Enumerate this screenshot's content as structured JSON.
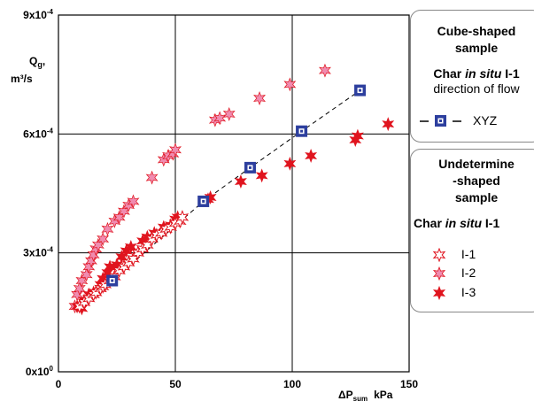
{
  "chart_data": {
    "type": "scatter",
    "title": "",
    "xlabel": "ΔP_{sum}, kPa",
    "ylabel": "Q_g, m³/s",
    "xlim": [
      0,
      150
    ],
    "ylim": [
      0,
      0.0009
    ],
    "x_ticks": [
      0,
      50,
      100,
      150
    ],
    "y_ticks": [
      "0x10^0",
      "3x10^-4",
      "6x10^-4",
      "9x10^-4"
    ],
    "grid": true,
    "legend_position": "right",
    "series": [
      {
        "name": "XYZ",
        "marker": "square",
        "color": "#2d3f9e",
        "line": "dashed",
        "points": [
          [
            23,
            0.00023
          ],
          [
            62,
            0.00043
          ],
          [
            82,
            0.000515
          ],
          [
            104,
            0.000607
          ],
          [
            129,
            0.00071
          ]
        ]
      },
      {
        "name": "I-1",
        "marker": "star-open",
        "color": "#e0141e",
        "points": [
          [
            9,
            0.000165
          ],
          [
            11,
            0.000175
          ],
          [
            13,
            0.000185
          ],
          [
            15,
            0.000195
          ],
          [
            16,
            0.0002
          ],
          [
            18,
            0.00021
          ],
          [
            19,
            0.000215
          ],
          [
            20,
            0.00022
          ],
          [
            22,
            0.00023
          ],
          [
            24,
            0.00024
          ],
          [
            26,
            0.000255
          ],
          [
            28,
            0.000265
          ],
          [
            30,
            0.000275
          ],
          [
            32,
            0.000285
          ],
          [
            34,
            0.0003
          ],
          [
            36,
            0.00031
          ],
          [
            38,
            0.00032
          ],
          [
            40,
            0.000335
          ],
          [
            42,
            0.000345
          ],
          [
            44,
            0.00035
          ],
          [
            46,
            0.00036
          ],
          [
            48,
            0.000365
          ],
          [
            50,
            0.000375
          ],
          [
            52,
            0.00038
          ],
          [
            53,
            0.00039
          ]
        ]
      },
      {
        "name": "I-2",
        "marker": "star-pink",
        "color": "#f08cb0",
        "points": [
          [
            7,
            0.000165
          ],
          [
            8,
            0.000195
          ],
          [
            9,
            0.00021
          ],
          [
            10,
            0.00023
          ],
          [
            12,
            0.000245
          ],
          [
            13,
            0.000265
          ],
          [
            14,
            0.00028
          ],
          [
            15,
            0.000295
          ],
          [
            16,
            0.00031
          ],
          [
            17,
            0.00032
          ],
          [
            19,
            0.000335
          ],
          [
            21,
            0.00036
          ],
          [
            24,
            0.00038
          ],
          [
            26,
            0.00039
          ],
          [
            28,
            0.000405
          ],
          [
            30,
            0.00042
          ],
          [
            32,
            0.00043
          ],
          [
            40,
            0.00049
          ],
          [
            45,
            0.000535
          ],
          [
            47,
            0.000545
          ],
          [
            49,
            0.00055
          ],
          [
            50,
            0.00056
          ],
          [
            67,
            0.000635
          ],
          [
            69,
            0.00064
          ],
          [
            73,
            0.00065
          ],
          [
            86,
            0.00069
          ],
          [
            99,
            0.000725
          ],
          [
            114,
            0.00076
          ]
        ]
      },
      {
        "name": "I-3",
        "marker": "star-solid",
        "color": "#e0141e",
        "points": [
          [
            8,
            0.000165
          ],
          [
            10,
            0.00016
          ],
          [
            11,
            0.00018
          ],
          [
            13,
            0.000195
          ],
          [
            15,
            0.0002
          ],
          [
            18,
            0.00022
          ],
          [
            19,
            0.000235
          ],
          [
            21,
            0.00025
          ],
          [
            22,
            0.000265
          ],
          [
            25,
            0.00027
          ],
          [
            27,
            0.00029
          ],
          [
            29,
            0.000305
          ],
          [
            31,
            0.000315
          ],
          [
            36,
            0.00033
          ],
          [
            38,
            0.00034
          ],
          [
            41,
            0.00035
          ],
          [
            45,
            0.000365
          ],
          [
            48,
            0.00037
          ],
          [
            50,
            0.000385
          ],
          [
            51,
            0.00039
          ],
          [
            64,
            0.000435
          ],
          [
            65,
            0.00044
          ],
          [
            78,
            0.00048
          ],
          [
            87,
            0.000495
          ],
          [
            99,
            0.000525
          ],
          [
            108,
            0.000545
          ],
          [
            127,
            0.000585
          ],
          [
            128,
            0.000595
          ],
          [
            141,
            0.000625
          ]
        ]
      }
    ]
  },
  "axis_text": {
    "y_label_line1": "Q",
    "y_label_sub": "g",
    "y_label_sep": ",",
    "y_label_line2": "m³/s",
    "x_label_main": "ΔP",
    "x_label_sub": "sum",
    "x_label_unit": "kPa"
  },
  "legend": {
    "cube": {
      "title_line1": "Cube-shaped",
      "title_line2": "sample",
      "char_prefix": "Char ",
      "char_italic": "in situ",
      "char_suffix": " I-1",
      "direction_text": "direction of flow",
      "series_label": "XYZ"
    },
    "undetermined": {
      "title_line1": "Undetermine",
      "title_line2": "-shaped",
      "title_line3": "sample",
      "char_prefix": "Char ",
      "char_italic": "in situ",
      "char_suffix": " I-1",
      "items": [
        "I-1",
        "I-2",
        "I-3"
      ]
    }
  },
  "colors": {
    "red": "#e0141e",
    "pink": "#f08cb0",
    "blue": "#2d3f9e",
    "grid": "#000000"
  }
}
